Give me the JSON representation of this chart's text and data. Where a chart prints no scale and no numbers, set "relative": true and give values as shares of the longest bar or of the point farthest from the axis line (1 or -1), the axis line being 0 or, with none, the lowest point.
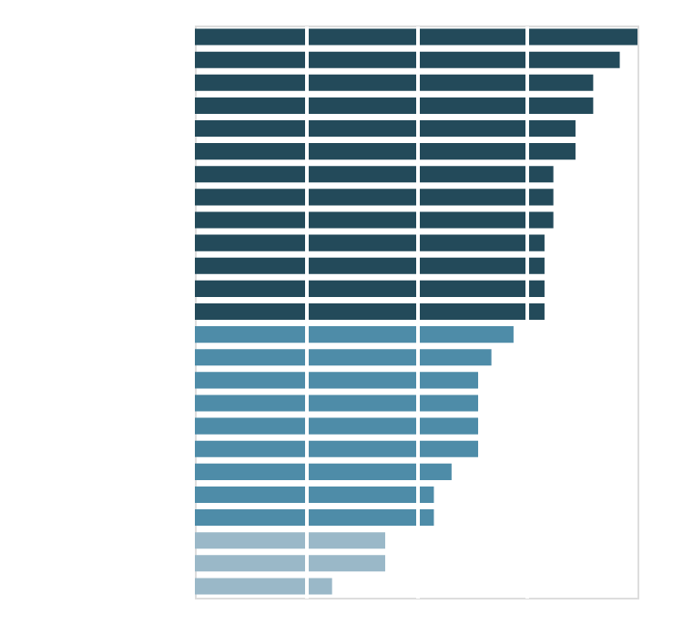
{
  "chart_data": {
    "type": "bar",
    "orientation": "horizontal",
    "relative": true,
    "grid": "x",
    "categories": [
      null,
      null,
      null,
      null,
      null,
      null,
      null,
      null,
      null,
      null,
      null,
      null,
      null,
      null,
      null,
      null,
      null,
      null,
      null,
      null,
      null,
      null,
      null,
      null,
      null
    ],
    "values": [
      1,
      0.96,
      0.9,
      0.9,
      0.86,
      0.86,
      0.81,
      0.81,
      0.81,
      0.79,
      0.79,
      0.79,
      0.79,
      0.72,
      0.67,
      0.64,
      0.64,
      0.64,
      0.64,
      0.58,
      0.54,
      0.54,
      0.43,
      0.43,
      0.31
    ],
    "colors": [
      "#234a5a",
      "#234a5a",
      "#234a5a",
      "#234a5a",
      "#234a5a",
      "#234a5a",
      "#234a5a",
      "#234a5a",
      "#234a5a",
      "#234a5a",
      "#234a5a",
      "#234a5a",
      "#234a5a",
      "#4e8ca8",
      "#4e8ca8",
      "#4e8ca8",
      "#4e8ca8",
      "#4e8ca8",
      "#4e8ca8",
      "#4e8ca8",
      "#4e8ca8",
      "#4e8ca8",
      "#9ab8c8",
      "#9ab8c8",
      "#9ab8c8"
    ]
  }
}
